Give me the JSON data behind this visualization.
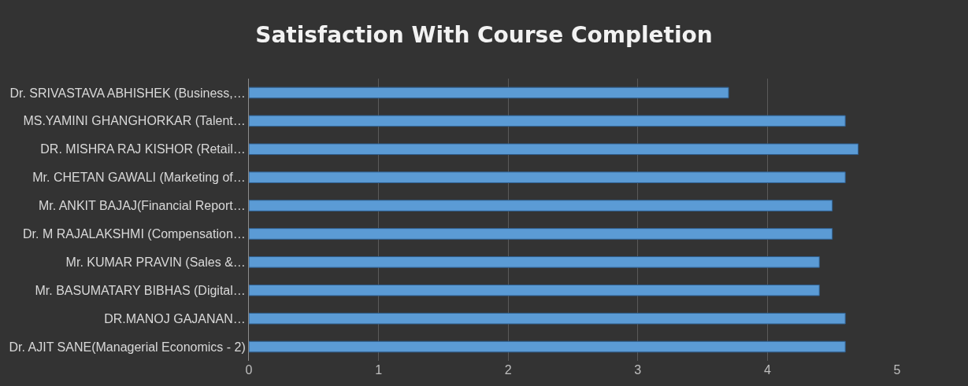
{
  "chart_data": {
    "type": "bar",
    "orientation": "horizontal",
    "title": "Satisfaction With Course Completion",
    "categories": [
      "Dr. SRIVASTAVA ABHISHEK (Business,…",
      "MS.YAMINI GHANGHORKAR (Talent…",
      "DR. MISHRA RAJ KISHOR (Retail…",
      "Mr. CHETAN GAWALI (Marketing of…",
      "Mr. ANKIT BAJAJ(Financial Report…",
      "Dr. M RAJALAKSHMI (Compensation…",
      "Mr. KUMAR PRAVIN (Sales &…",
      "Mr. BASUMATARY BIBHAS (Digital…",
      "DR.MANOJ GAJANAN…",
      "Dr. AJIT SANE(Managerial Economics - 2)"
    ],
    "values": [
      3.7,
      4.6,
      4.7,
      4.6,
      4.5,
      4.5,
      4.4,
      4.4,
      4.6,
      4.6
    ],
    "color": "#5b9bd5",
    "xlim": [
      0,
      5
    ],
    "xticks": [
      0,
      1,
      2,
      3,
      4,
      5
    ],
    "grid": "x"
  }
}
